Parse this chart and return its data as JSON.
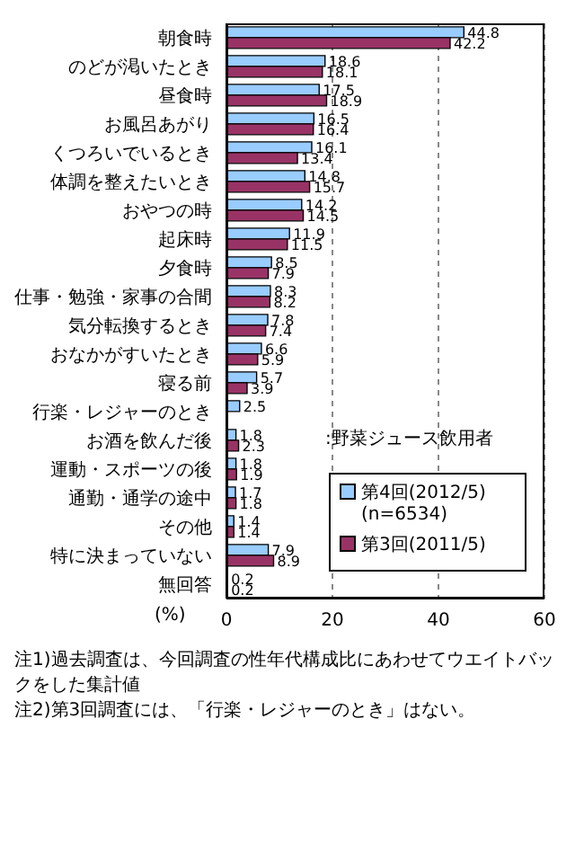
{
  "chart_data": {
    "type": "bar",
    "orientation": "horizontal",
    "xlabel": "(%)",
    "categories": [
      "朝食時",
      "のどが渇いたとき",
      "昼食時",
      "お風呂あがり",
      "くつろいでいるとき",
      "体調を整えたいとき",
      "おやつの時",
      "起床時",
      "夕食時",
      "仕事・勉強・家事の合間",
      "気分転換するとき",
      "おなかがすいたとき",
      "寝る前",
      "行楽・レジャーのとき",
      "お酒を飲んだ後",
      "運動・スポーツの後",
      "通勤・通学の途中",
      "その他",
      "特に決まっていない",
      "無回答"
    ],
    "series": [
      {
        "name": "第4回(2012/5) (n=6534)",
        "color": "#99ccff",
        "values": [
          44.8,
          18.6,
          17.5,
          16.5,
          16.1,
          14.8,
          14.2,
          11.9,
          8.5,
          8.3,
          7.8,
          6.6,
          5.7,
          2.5,
          1.8,
          1.8,
          1.7,
          1.4,
          7.9,
          0.2
        ]
      },
      {
        "name": "第3回(2011/5)",
        "color": "#993366",
        "values": [
          42.2,
          18.1,
          18.9,
          16.4,
          13.4,
          15.7,
          14.5,
          11.5,
          7.9,
          8.2,
          7.4,
          5.9,
          3.9,
          null,
          2.3,
          1.9,
          1.8,
          1.4,
          8.9,
          0.2
        ]
      }
    ],
    "xlim": [
      0,
      60
    ],
    "xticks": [
      0,
      20,
      40,
      60
    ],
    "grid": "x",
    "legend": "bottom right",
    "data_labels": true,
    "annotations": [
      ":野菜ジュース飲用者",
      "注1)過去調査は、今回調査の性年代構成比にあわせてウエイトバックをした集計値",
      "注2)第3回調査には、「行楽・レジャーのとき」はない。"
    ]
  }
}
